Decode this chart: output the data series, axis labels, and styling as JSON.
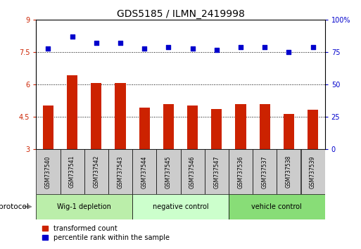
{
  "title": "GDS5185 / ILMN_2419998",
  "samples": [
    "GSM737540",
    "GSM737541",
    "GSM737542",
    "GSM737543",
    "GSM737544",
    "GSM737545",
    "GSM737546",
    "GSM737547",
    "GSM737536",
    "GSM737537",
    "GSM737538",
    "GSM737539"
  ],
  "transformed_counts": [
    5.05,
    6.45,
    6.07,
    6.07,
    4.95,
    5.1,
    5.02,
    4.88,
    5.1,
    5.1,
    4.65,
    4.85
  ],
  "percentile_ranks": [
    78,
    87,
    82,
    82,
    78,
    79,
    78,
    77,
    79,
    79,
    75,
    79
  ],
  "bar_color": "#CC2200",
  "dot_color": "#0000CC",
  "bar_bottom": 3.0,
  "ylim_left": [
    3.0,
    9.0
  ],
  "ylim_right": [
    0,
    100
  ],
  "yticks_left": [
    3.0,
    4.5,
    6.0,
    7.5,
    9.0
  ],
  "ytick_labels_left": [
    "3",
    "4.5",
    "6",
    "7.5",
    "9"
  ],
  "yticks_right": [
    0,
    25,
    50,
    75,
    100
  ],
  "ytick_labels_right": [
    "0",
    "25",
    "50",
    "75",
    "100%"
  ],
  "dotted_lines": [
    4.5,
    6.0,
    7.5
  ],
  "groups": [
    {
      "label": "Wig-1 depletion",
      "start": 0,
      "end": 4,
      "color": "#BBEEAA"
    },
    {
      "label": "negative control",
      "start": 4,
      "end": 8,
      "color": "#CCFFCC"
    },
    {
      "label": "vehicle control",
      "start": 8,
      "end": 12,
      "color": "#88DD77"
    }
  ],
  "protocol_label": "protocol",
  "legend_red_label": "transformed count",
  "legend_blue_label": "percentile rank within the sample",
  "background_color": "#FFFFFF",
  "tick_label_color_left": "#CC2200",
  "tick_label_color_right": "#0000CC",
  "bar_width": 0.45,
  "sample_box_color": "#CCCCCC",
  "title_fontsize": 10
}
